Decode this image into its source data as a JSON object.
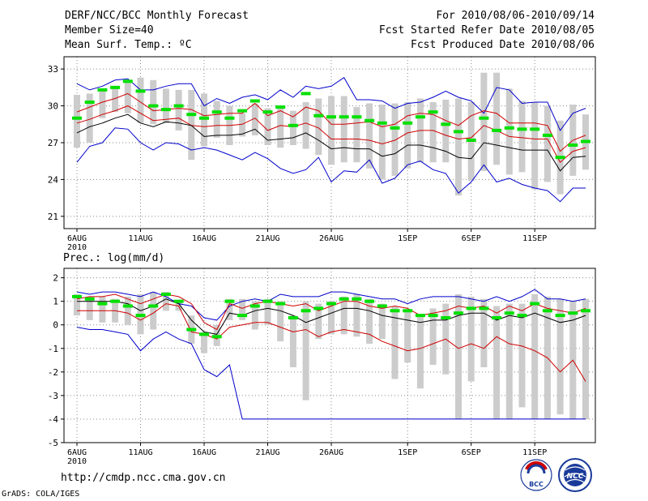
{
  "header": {
    "title": "DERF/NCC/BCC Monthly Forecast",
    "member_size": "Member Size=40",
    "variable": "Mean Surf. Temp.: ºC",
    "period": "For 2010/08/06-2010/09/14",
    "start_date": "Fcst Started Refer Date 2010/08/05",
    "produced_date": "Fcst Produced Date 2010/08/06"
  },
  "footer": {
    "url": "http://cmdp.ncc.cma.gov.cn",
    "grads": "GrADS: COLA/IGES",
    "logo_left_text": "BCC",
    "logo_right_text": "NCC"
  },
  "colors": {
    "box": "#cccccc",
    "median": "#00e000",
    "envelope": "#0000cc",
    "spread": "#d00000",
    "mean": "#000000",
    "grid": "#888888"
  },
  "chart_data": [
    {
      "type": "box-plot",
      "title": "Mean Surf. Temp.: ºC",
      "xlabel": "",
      "ylabel": "",
      "ylim": [
        20,
        34
      ],
      "yticks": [
        21,
        24,
        27,
        30,
        33
      ],
      "grid": true,
      "day_count": 40,
      "x_ticks": [
        {
          "day": 0,
          "label": "6AUG",
          "sub": "2010"
        },
        {
          "day": 5,
          "label": "11AUG"
        },
        {
          "day": 10,
          "label": "16AUG"
        },
        {
          "day": 15,
          "label": "21AUG"
        },
        {
          "day": 20,
          "label": "26AUG"
        },
        {
          "day": 26,
          "label": "1SEP"
        },
        {
          "day": 31,
          "label": "6SEP"
        },
        {
          "day": 36,
          "label": "11SEP"
        }
      ],
      "series": [
        {
          "name": "ensemble max",
          "values": [
            25.4,
            26.7,
            27.0,
            28.2,
            28.1,
            27.0,
            26.4,
            27.0,
            26.9,
            26.4,
            26.6,
            26.4,
            26.0,
            25.6,
            26.2,
            25.7,
            24.9,
            24.5,
            24.8,
            25.8,
            23.8,
            24.7,
            24.6,
            25.6,
            23.7,
            24.1,
            25.2,
            25.5,
            24.8,
            24.5,
            22.9,
            23.8,
            25.2,
            23.8,
            24.1,
            23.6,
            23.3,
            23.1,
            22.2,
            23.3,
            23.3
          ]
        },
        {
          "name": "ensemble min",
          "values": [
            31.8,
            31.3,
            31.6,
            32.1,
            32.2,
            31.3,
            31.3,
            31.6,
            31.8,
            31.8,
            30.0,
            30.6,
            30.2,
            30.7,
            30.9,
            30.5,
            31.3,
            30.7,
            31.6,
            31.4,
            31.6,
            32.3,
            30.5,
            30.5,
            30.4,
            29.8,
            30.2,
            30.3,
            30.7,
            31.2,
            30.7,
            30.4,
            29.4,
            31.5,
            31.3,
            30.2,
            30.3,
            30.3,
            28.0,
            29.4,
            29.8
          ]
        },
        {
          "name": "mean + std",
          "values": [
            29.5,
            29.9,
            30.3,
            30.6,
            31.0,
            30.3,
            29.6,
            29.7,
            29.8,
            29.7,
            29.2,
            29.3,
            29.4,
            29.4,
            30.2,
            29.2,
            29.6,
            29.1,
            29.9,
            29.6,
            28.5,
            28.5,
            28.6,
            28.7,
            28.3,
            28.5,
            29.2,
            29.4,
            29.3,
            28.8,
            28.4,
            29.2,
            29.6,
            29.4,
            28.6,
            28.6,
            28.6,
            28.4,
            26.3,
            27.2,
            27.6
          ]
        },
        {
          "name": "mean - std",
          "values": [
            28.6,
            28.9,
            29.3,
            29.6,
            30.0,
            29.4,
            28.8,
            28.9,
            29.0,
            28.4,
            28.3,
            28.4,
            28.4,
            28.5,
            29.0,
            28.0,
            28.4,
            28.3,
            28.6,
            28.2,
            27.3,
            27.3,
            27.3,
            27.2,
            26.9,
            27.2,
            27.8,
            28.0,
            28.0,
            27.6,
            27.3,
            27.4,
            28.4,
            28.0,
            27.5,
            27.4,
            27.3,
            27.3,
            25.4,
            26.3,
            26.6
          ]
        },
        {
          "name": "ensemble mean",
          "values": [
            27.8,
            28.3,
            28.6,
            29.0,
            29.3,
            28.6,
            28.3,
            28.7,
            28.6,
            28.4,
            27.5,
            27.6,
            27.6,
            27.7,
            28.1,
            27.2,
            27.3,
            27.4,
            27.8,
            27.2,
            26.5,
            26.6,
            26.5,
            26.5,
            25.9,
            26.1,
            26.8,
            26.8,
            26.6,
            26.3,
            25.8,
            25.7,
            27.0,
            26.8,
            26.6,
            26.4,
            26.4,
            26.4,
            24.7,
            25.8,
            25.9
          ]
        },
        {
          "name": "median",
          "values": [
            29.0,
            30.3,
            31.3,
            31.5,
            32.0,
            31.2,
            30.0,
            29.7,
            30.0,
            29.3,
            29.0,
            29.5,
            29.0,
            29.6,
            30.4,
            29.5,
            29.9,
            28.4,
            31.0,
            29.2,
            29.1,
            29.1,
            29.1,
            28.8,
            28.6,
            28.2,
            28.6,
            29.1,
            29.5,
            28.5,
            27.9,
            27.2,
            29.0,
            28.0,
            28.2,
            28.1,
            28.1,
            27.6,
            25.8,
            26.8,
            27.1
          ]
        },
        {
          "name": "box high",
          "values": [
            30.9,
            31.0,
            31.4,
            31.5,
            32.0,
            32.3,
            32.1,
            31.4,
            31.3,
            31.3,
            31.0,
            30.4,
            30.0,
            29.4,
            30.2,
            29.8,
            29.8,
            29.6,
            30.3,
            30.6,
            30.8,
            30.8,
            29.9,
            30.2,
            30.1,
            30.2,
            30.3,
            30.6,
            30.3,
            30.5,
            30.6,
            30.3,
            32.7,
            32.7,
            31.4,
            30.4,
            30.3,
            30.0,
            28.8,
            30.1,
            29.3
          ]
        },
        {
          "name": "box low",
          "values": [
            26.6,
            27.0,
            29.0,
            29.5,
            29.4,
            28.6,
            28.5,
            28.6,
            28.0,
            25.6,
            26.7,
            27.4,
            26.8,
            27.5,
            27.6,
            26.8,
            26.6,
            26.8,
            26.5,
            26.0,
            25.2,
            25.4,
            25.4,
            24.9,
            24.0,
            24.3,
            24.9,
            25.4,
            25.4,
            25.4,
            22.7,
            23.9,
            24.7,
            25.2,
            24.4,
            24.6,
            23.2,
            23.8,
            22.8,
            24.3,
            24.8
          ]
        }
      ]
    },
    {
      "type": "box-plot",
      "title": "Prec.: log(mm/d)",
      "xlabel": "",
      "ylabel": "",
      "ylim": [
        -5,
        2.4
      ],
      "yticks": [
        -5,
        -4,
        -3,
        -2,
        -1,
        0,
        1,
        2
      ],
      "grid": true,
      "day_count": 40,
      "x_ticks": [
        {
          "day": 0,
          "label": "6AUG",
          "sub": "2010"
        },
        {
          "day": 5,
          "label": "11AUG"
        },
        {
          "day": 10,
          "label": "16AUG"
        },
        {
          "day": 15,
          "label": "21AUG"
        },
        {
          "day": 20,
          "label": "26AUG"
        },
        {
          "day": 26,
          "label": "1SEP"
        },
        {
          "day": 31,
          "label": "6SEP"
        },
        {
          "day": 36,
          "label": "11SEP"
        }
      ],
      "series": [
        {
          "name": "ensemble max",
          "values": [
            1.4,
            1.3,
            1.4,
            1.4,
            1.3,
            1.2,
            1.4,
            1.2,
            0.9,
            0.8,
            0.3,
            0.2,
            0.8,
            1.0,
            1.1,
            1.0,
            1.3,
            1.2,
            1.2,
            1.2,
            1.4,
            1.4,
            1.3,
            1.2,
            1.1,
            1.1,
            0.9,
            1.1,
            1.2,
            1.2,
            1.2,
            1.1,
            1.0,
            1.2,
            1.0,
            1.2,
            1.5,
            1.1,
            1.1,
            1.0,
            1.1
          ]
        },
        {
          "name": "ensemble min",
          "values": [
            -0.1,
            -0.2,
            -0.2,
            -0.3,
            -0.4,
            -1.1,
            -0.6,
            -0.3,
            -0.6,
            -0.8,
            -1.9,
            -2.2,
            -1.7,
            -4.0,
            -4.0,
            -4.0,
            -4.0,
            -4.0,
            -4.0,
            -4.0,
            -4.0,
            -4.0,
            -4.0,
            -4.0,
            -4.0,
            -4.0,
            -4.0,
            -4.0,
            -4.0,
            -4.0,
            -4.0,
            -4.0,
            -4.0,
            -4.0,
            -4.0,
            -4.0,
            -4.0,
            -4.0,
            -4.0,
            -4.0,
            -4.0
          ]
        },
        {
          "name": "mean + std",
          "values": [
            1.1,
            1.2,
            1.2,
            1.3,
            1.1,
            0.9,
            1.1,
            1.3,
            1.2,
            0.9,
            0.1,
            -0.2,
            0.9,
            0.7,
            0.9,
            1.0,
            0.9,
            0.8,
            0.9,
            0.6,
            0.8,
            1.0,
            1.0,
            0.8,
            0.7,
            0.8,
            0.7,
            0.4,
            0.5,
            0.6,
            0.8,
            0.7,
            0.8,
            0.5,
            0.8,
            0.6,
            0.9,
            0.7,
            0.6,
            0.5,
            0.7
          ]
        },
        {
          "name": "mean - std",
          "values": [
            0.6,
            0.6,
            0.6,
            0.6,
            0.5,
            0.2,
            0.5,
            0.9,
            0.8,
            -0.3,
            -0.4,
            -0.6,
            -0.1,
            0.0,
            0.1,
            0.1,
            -0.1,
            -0.3,
            -0.2,
            -0.5,
            -0.3,
            -0.2,
            -0.3,
            -0.4,
            -0.7,
            -0.9,
            -1.1,
            -1.0,
            -0.8,
            -0.6,
            -1.0,
            -0.8,
            -1.0,
            -0.5,
            -0.8,
            -0.9,
            -1.1,
            -1.4,
            -2.0,
            -1.5,
            -2.4
          ]
        },
        {
          "name": "ensemble mean",
          "values": [
            1.0,
            1.0,
            1.0,
            1.0,
            0.9,
            0.6,
            0.8,
            1.1,
            0.9,
            0.2,
            -0.3,
            -0.4,
            0.5,
            0.4,
            0.6,
            0.7,
            0.6,
            0.4,
            0.1,
            0.3,
            0.5,
            0.7,
            0.7,
            0.6,
            0.4,
            0.3,
            0.2,
            0.1,
            0.2,
            0.2,
            0.4,
            0.5,
            0.5,
            0.2,
            0.4,
            0.3,
            0.5,
            0.3,
            0.1,
            0.2,
            0.4
          ]
        },
        {
          "name": "median",
          "values": [
            1.2,
            1.1,
            0.9,
            1.0,
            0.8,
            0.4,
            0.8,
            1.3,
            1.0,
            -0.2,
            -0.4,
            -0.5,
            1.0,
            0.4,
            0.8,
            1.0,
            0.9,
            0.3,
            0.6,
            0.7,
            0.9,
            1.1,
            1.1,
            1.0,
            0.8,
            0.6,
            0.6,
            0.4,
            0.4,
            0.3,
            0.5,
            0.7,
            0.7,
            0.3,
            0.5,
            0.4,
            0.9,
            0.6,
            0.4,
            0.5,
            0.6
          ]
        },
        {
          "name": "box high",
          "values": [
            1.3,
            1.2,
            1.2,
            1.1,
            1.2,
            1.3,
            1.4,
            1.4,
            1.0,
            0.4,
            -0.3,
            0.0,
            1.1,
            1.1,
            1.0,
            1.1,
            1.0,
            0.4,
            1.0,
            0.9,
            1.0,
            1.2,
            1.3,
            1.1,
            0.9,
            0.8,
            0.6,
            0.4,
            0.7,
            0.9,
            1.3,
            1.2,
            1.1,
            0.8,
            0.9,
            0.9,
            1.3,
            1.2,
            1.1,
            1.0,
            1.1
          ]
        },
        {
          "name": "box low",
          "values": [
            0.4,
            0.2,
            0.1,
            0.1,
            0.0,
            -0.4,
            -0.2,
            0.6,
            0.6,
            -0.8,
            -1.2,
            -0.9,
            0.2,
            0.2,
            -0.2,
            0.0,
            -0.7,
            -1.8,
            -3.2,
            -0.6,
            -0.4,
            -0.4,
            -0.5,
            -0.8,
            -0.6,
            -2.3,
            -1.6,
            -2.7,
            -1.7,
            -2.1,
            -4.0,
            -2.4,
            -1.8,
            -4.0,
            -4.0,
            -3.5,
            -4.0,
            -4.0,
            -3.8,
            -4.0,
            -4.0
          ]
        }
      ]
    }
  ]
}
